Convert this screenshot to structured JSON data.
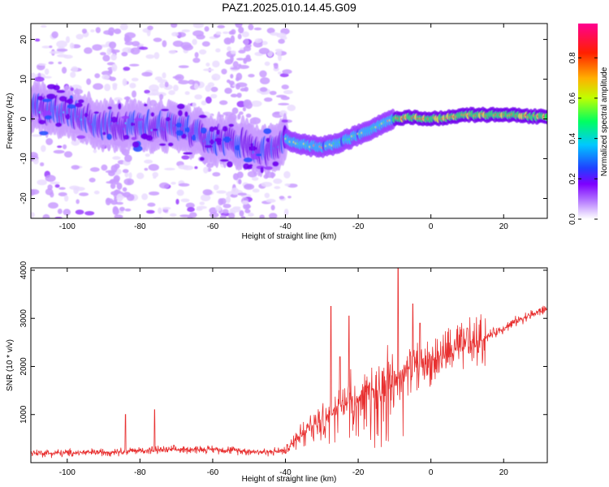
{
  "title": "PAZ1.2025.010.14.45.G09",
  "chart_data": [
    {
      "type": "heatmap",
      "title": "PAZ1.2025.010.14.45.G09",
      "xlabel": "Height of straight line (km)",
      "ylabel": "Frequency (Hz)",
      "xlim": [
        -110,
        32
      ],
      "ylim": [
        -25,
        24
      ],
      "xticks": [
        -100,
        -80,
        -60,
        -40,
        -20,
        0,
        20
      ],
      "yticks": [
        -20,
        -10,
        0,
        10,
        20
      ],
      "grid": false,
      "colorbar": {
        "label": "Normalized spectral amplitude",
        "range": [
          0,
          0.97
        ],
        "ticks": [
          0.0,
          0.2,
          0.4,
          0.6,
          0.8
        ],
        "tick_labels": [
          "0.0",
          "0.2",
          "0.4",
          "0.6",
          "0.8"
        ],
        "colormap": [
          "#ffffff",
          "#c8a0ff",
          "#7d00ff",
          "#2040ff",
          "#00d0ff",
          "#00ff40",
          "#f0ff00",
          "#ff8000",
          "#ff0000",
          "#ff0080"
        ]
      },
      "ridge": {
        "x": [
          -108,
          -100,
          -90,
          -80,
          -70,
          -60,
          -50,
          -45,
          -40,
          -35,
          -30,
          -25,
          -20,
          -15,
          -10,
          -5,
          0,
          10,
          20,
          32
        ],
        "y": [
          2.5,
          2,
          -1.5,
          -1.5,
          -2,
          -5,
          -6.5,
          -8,
          -5,
          -6.5,
          -7,
          -6,
          -4,
          -2,
          0,
          0.5,
          0,
          1,
          1,
          0.5
        ]
      }
    },
    {
      "type": "line",
      "xlabel": "Height of straight line (km)",
      "ylabel": "SNR (10 * v/v)",
      "xlim": [
        -110,
        32
      ],
      "ylim": [
        0,
        4050
      ],
      "xticks": [
        -100,
        -80,
        -60,
        -40,
        -20,
        0,
        20
      ],
      "yticks": [
        1000,
        2000,
        3000,
        4000
      ],
      "grid": false,
      "color": "#e83030",
      "profile": {
        "x": [
          -110,
          -100,
          -90,
          -80,
          -70,
          -60,
          -50,
          -45,
          -40,
          -38,
          -35,
          -30,
          -27,
          -25,
          -20,
          -15,
          -10,
          -5,
          0,
          5,
          10,
          15,
          20,
          25,
          32
        ],
        "y": [
          200,
          200,
          220,
          250,
          270,
          280,
          240,
          220,
          250,
          400,
          700,
          850,
          1100,
          1200,
          1350,
          1550,
          1700,
          2000,
          2100,
          2300,
          2400,
          2600,
          2800,
          3000,
          3200
        ]
      },
      "spikes": [
        {
          "x": -84,
          "y": 1000
        },
        {
          "x": -76,
          "y": 1100
        },
        {
          "x": -27.5,
          "y": 3250
        },
        {
          "x": -25,
          "y": 2200
        },
        {
          "x": -22.5,
          "y": 3050
        },
        {
          "x": -9,
          "y": 4050
        },
        {
          "x": -5,
          "y": 3300
        },
        {
          "x": -3,
          "y": 2900
        },
        {
          "x": 10,
          "y": 2800
        }
      ]
    }
  ]
}
